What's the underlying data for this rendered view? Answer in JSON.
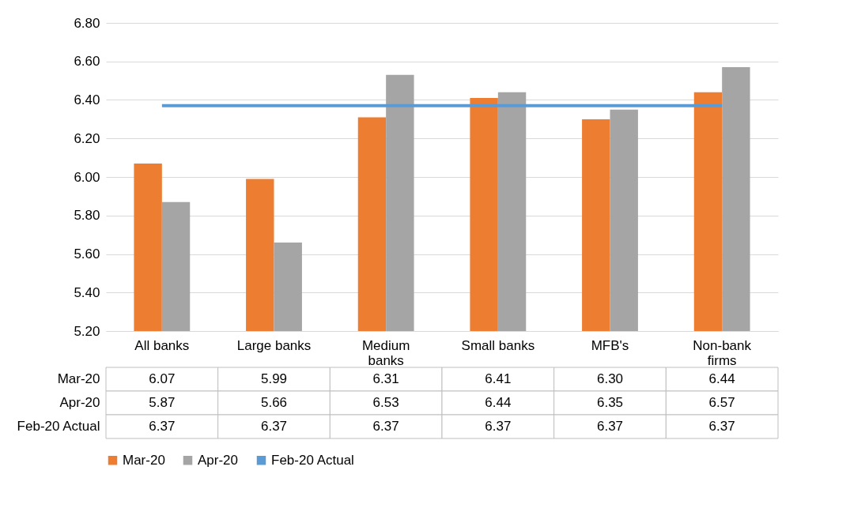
{
  "chart_data": {
    "type": "bar",
    "categories": [
      "All banks",
      "Large banks",
      "Medium banks",
      "Small banks",
      "MFB's",
      "Non-bank firms"
    ],
    "series": [
      {
        "name": "Mar-20",
        "color": "#ed7d31",
        "values": [
          6.07,
          5.99,
          6.31,
          6.41,
          6.3,
          6.44
        ],
        "value_labels": [
          "6.07",
          "5.99",
          "6.31",
          "6.41",
          "6.30",
          "6.44"
        ]
      },
      {
        "name": "Apr-20",
        "color": "#a5a5a5",
        "values": [
          5.87,
          5.66,
          6.53,
          6.44,
          6.35,
          6.57
        ],
        "value_labels": [
          "5.87",
          "5.66",
          "6.53",
          "6.44",
          "6.35",
          "6.57"
        ]
      },
      {
        "name": "Feb-20 Actual",
        "type": "line",
        "color": "#5b9bd5",
        "values": [
          6.37,
          6.37,
          6.37,
          6.37,
          6.37,
          6.37
        ],
        "value_labels": [
          "6.37",
          "6.37",
          "6.37",
          "6.37",
          "6.37",
          "6.37"
        ]
      }
    ],
    "ylim": [
      5.2,
      6.8
    ],
    "yticks": [
      {
        "value": 5.2,
        "label": "5.20"
      },
      {
        "value": 5.4,
        "label": "5.40"
      },
      {
        "value": 5.6,
        "label": "5.60"
      },
      {
        "value": 5.8,
        "label": "5.80"
      },
      {
        "value": 6.0,
        "label": "6.00"
      },
      {
        "value": 6.2,
        "label": "6.20"
      },
      {
        "value": 6.4,
        "label": "6.40"
      },
      {
        "value": 6.6,
        "label": "6.60"
      },
      {
        "value": 6.8,
        "label": "6.80"
      }
    ],
    "grid": "y",
    "legend": "bottom"
  }
}
